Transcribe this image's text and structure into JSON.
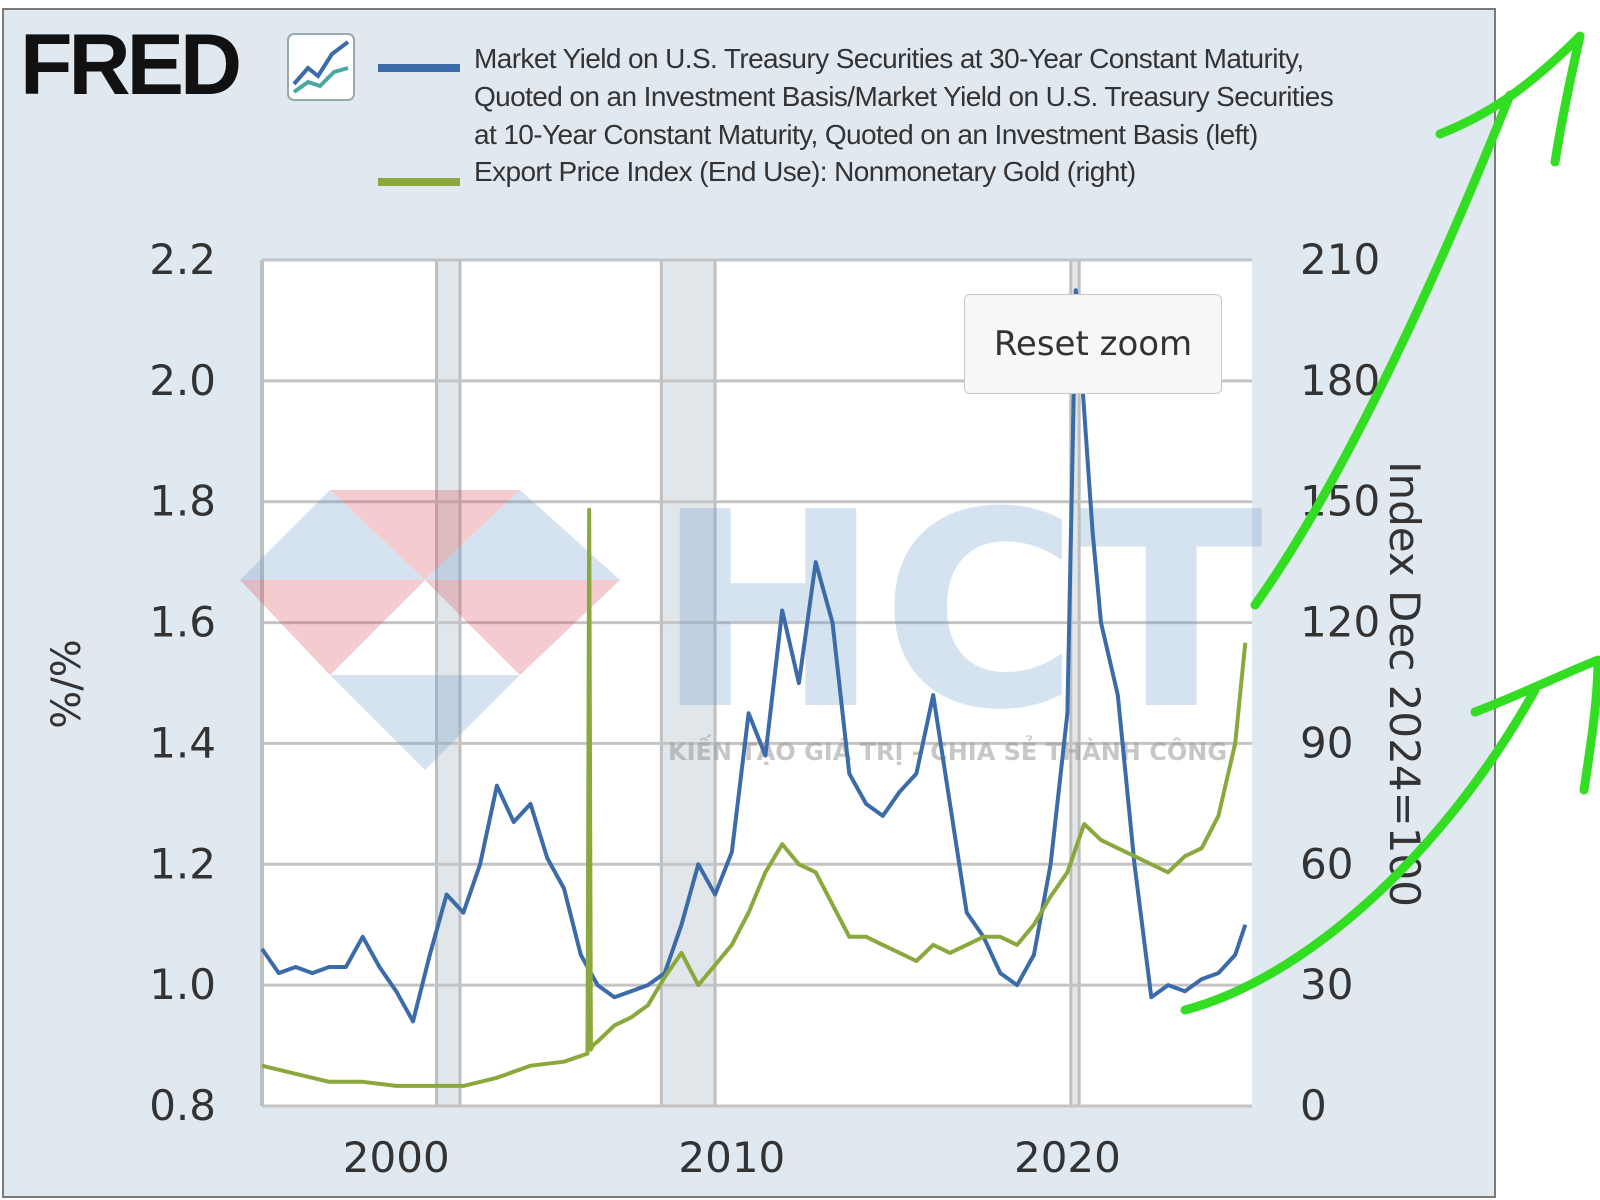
{
  "brand": {
    "name": "FRED"
  },
  "legend": {
    "series1_lines": [
      "Market Yield on U.S. Treasury Securities at 30-Year Constant Maturity,",
      "Quoted on an Investment Basis/Market Yield on U.S. Treasury Securities",
      "at 10-Year Constant Maturity, Quoted on an Investment Basis (left)"
    ],
    "series2_lines": [
      "Export Price Index (End Use): Nonmonetary Gold (right)"
    ]
  },
  "reset_zoom_label": "Reset zoom",
  "watermark": {
    "text": "HCT",
    "tagline": "KIẾN TẠO GIÁ TRỊ - CHIA SẺ THÀNH CÔNG"
  },
  "colors": {
    "series1": "#3b6ba8",
    "series2": "#8aa83c",
    "panel_bg": "#e1e9f0",
    "plot_bg": "#ffffff",
    "recession": "#e1e6ea",
    "annotation": "#33dd22"
  },
  "chart_data": {
    "type": "line",
    "dual_axis": true,
    "x_range": [
      1996,
      2025.5
    ],
    "x_ticks": [
      "2000",
      "2010",
      "2020"
    ],
    "x_tick_values": [
      2000,
      2010,
      2020
    ],
    "ylabel_left": "%/%",
    "ylabel_right": "Index Dec 2024=100",
    "ylim_left": [
      0.8,
      2.2
    ],
    "y_ticks_left": [
      "0.8",
      "1.0",
      "1.2",
      "1.4",
      "1.6",
      "1.8",
      "2.0",
      "2.2"
    ],
    "ylim_right": [
      0,
      210
    ],
    "y_ticks_right": [
      "0",
      "30",
      "60",
      "90",
      "120",
      "150",
      "180",
      "210"
    ],
    "recessions": [
      [
        2001.2,
        2001.9
      ],
      [
        2007.9,
        2009.5
      ],
      [
        2020.1,
        2020.35
      ]
    ],
    "grid": true,
    "legend_position": "top",
    "series": [
      {
        "name": "Market Yield on U.S. Treasury Securities at 30-Year Constant Maturity, Quoted on an Investment Basis/Market Yield on U.S. Treasury Securities at 10-Year Constant Maturity, Quoted on an Investment Basis (left)",
        "axis": "left",
        "x": [
          1996.0,
          1996.5,
          1997.0,
          1997.5,
          1998.0,
          1998.5,
          1999.0,
          1999.5,
          2000.0,
          2000.5,
          2001.0,
          2001.5,
          2002.0,
          2002.5,
          2003.0,
          2003.5,
          2004.0,
          2004.5,
          2005.0,
          2005.5,
          2006.0,
          2006.5,
          2007.0,
          2007.5,
          2008.0,
          2008.5,
          2009.0,
          2009.5,
          2010.0,
          2010.5,
          2011.0,
          2011.5,
          2012.0,
          2012.5,
          2013.0,
          2013.5,
          2014.0,
          2014.5,
          2015.0,
          2015.5,
          2016.0,
          2016.5,
          2017.0,
          2017.5,
          2018.0,
          2018.5,
          2019.0,
          2019.5,
          2020.0,
          2020.25,
          2020.5,
          2020.75,
          2021.0,
          2021.5,
          2022.0,
          2022.5,
          2023.0,
          2023.5,
          2024.0,
          2024.5,
          2025.0,
          2025.3
        ],
        "values": [
          1.06,
          1.02,
          1.03,
          1.02,
          1.03,
          1.03,
          1.08,
          1.03,
          0.99,
          0.94,
          1.05,
          1.15,
          1.12,
          1.2,
          1.33,
          1.27,
          1.3,
          1.21,
          1.16,
          1.05,
          1.0,
          0.98,
          0.99,
          1.0,
          1.02,
          1.1,
          1.2,
          1.15,
          1.22,
          1.45,
          1.38,
          1.62,
          1.5,
          1.7,
          1.6,
          1.35,
          1.3,
          1.28,
          1.32,
          1.35,
          1.48,
          1.3,
          1.12,
          1.08,
          1.02,
          1.0,
          1.05,
          1.2,
          1.45,
          2.15,
          1.95,
          1.75,
          1.6,
          1.48,
          1.2,
          0.98,
          1.0,
          0.99,
          1.01,
          1.02,
          1.05,
          1.1
        ]
      },
      {
        "name": "Export Price Index (End Use): Nonmonetary Gold (right)",
        "axis": "right",
        "x": [
          1996.0,
          1997.0,
          1998.0,
          1999.0,
          2000.0,
          2001.0,
          2002.0,
          2003.0,
          2004.0,
          2005.0,
          2005.7,
          2005.75,
          2005.8,
          2005.85,
          2006.0,
          2006.5,
          2007.0,
          2007.5,
          2008.0,
          2008.5,
          2009.0,
          2009.5,
          2010.0,
          2010.5,
          2011.0,
          2011.5,
          2012.0,
          2012.5,
          2013.0,
          2013.5,
          2014.0,
          2014.5,
          2015.0,
          2015.5,
          2016.0,
          2016.5,
          2017.0,
          2017.5,
          2018.0,
          2018.5,
          2019.0,
          2019.5,
          2020.0,
          2020.5,
          2021.0,
          2021.5,
          2022.0,
          2022.5,
          2023.0,
          2023.5,
          2024.0,
          2024.5,
          2025.0,
          2025.3
        ],
        "values": [
          10,
          8,
          6,
          6,
          5,
          5,
          5,
          7,
          10,
          11,
          13,
          148,
          14,
          15,
          16,
          20,
          22,
          25,
          32,
          38,
          30,
          35,
          40,
          48,
          58,
          65,
          60,
          58,
          50,
          42,
          42,
          40,
          38,
          36,
          40,
          38,
          40,
          42,
          42,
          40,
          45,
          52,
          58,
          70,
          66,
          64,
          62,
          60,
          58,
          62,
          64,
          72,
          90,
          115
        ]
      }
    ]
  }
}
